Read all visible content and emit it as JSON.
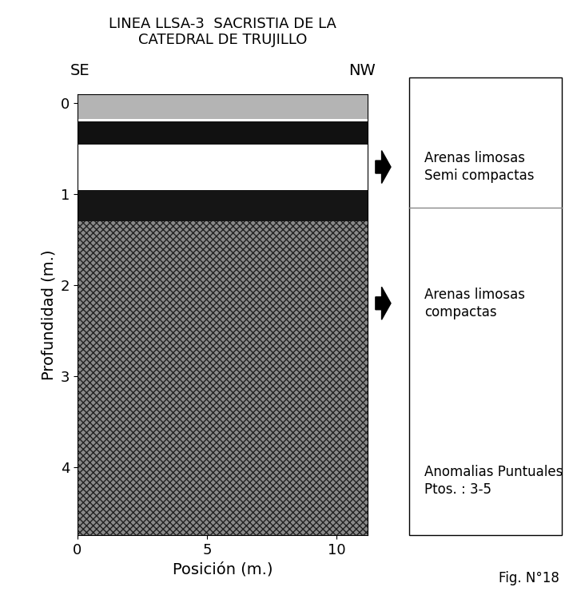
{
  "chart_data": {
    "type": "radargram",
    "title": "LINEA LLSA-3  SACRISTIA DE LA\nCATEDRAL DE TRUJILLO",
    "direction_left": "SE",
    "direction_right": "NW",
    "x_label": "Posición (m.)",
    "y_label": "Profundidad (m.)",
    "xlim": [
      0,
      11.2
    ],
    "xticks": [
      0,
      5,
      10
    ],
    "ylim": [
      4.75,
      -0.1
    ],
    "yticks": [
      0,
      1,
      2,
      3,
      4
    ],
    "radargram_bands": [
      {
        "top": -0.1,
        "bottom": 0.17,
        "color": "#b4b4b4"
      },
      {
        "top": 0.17,
        "bottom": 0.2,
        "color": "#ffffff"
      },
      {
        "top": 0.2,
        "bottom": 0.45,
        "color": "#111111"
      },
      {
        "top": 0.45,
        "bottom": 0.95,
        "color": "#ffffff"
      },
      {
        "top": 0.95,
        "bottom": 1.3,
        "color": "#151515"
      },
      {
        "top": 1.3,
        "bottom": 4.75,
        "color": "#8a8a8a",
        "textured": true
      }
    ],
    "interpretation": {
      "boundaries": [
        1.15
      ],
      "layers": [
        {
          "label": "Arenas limosas\nSemi compactas",
          "depth": 0.7,
          "arrow": true
        },
        {
          "label": "Arenas limosas\ncompactas",
          "depth": 2.2,
          "arrow": true
        },
        {
          "label": "Anomalias Puntuales\nPtos. : 3-5",
          "depth": 4.15,
          "arrow": false
        }
      ]
    },
    "figure_label": "Fig. N°18"
  }
}
